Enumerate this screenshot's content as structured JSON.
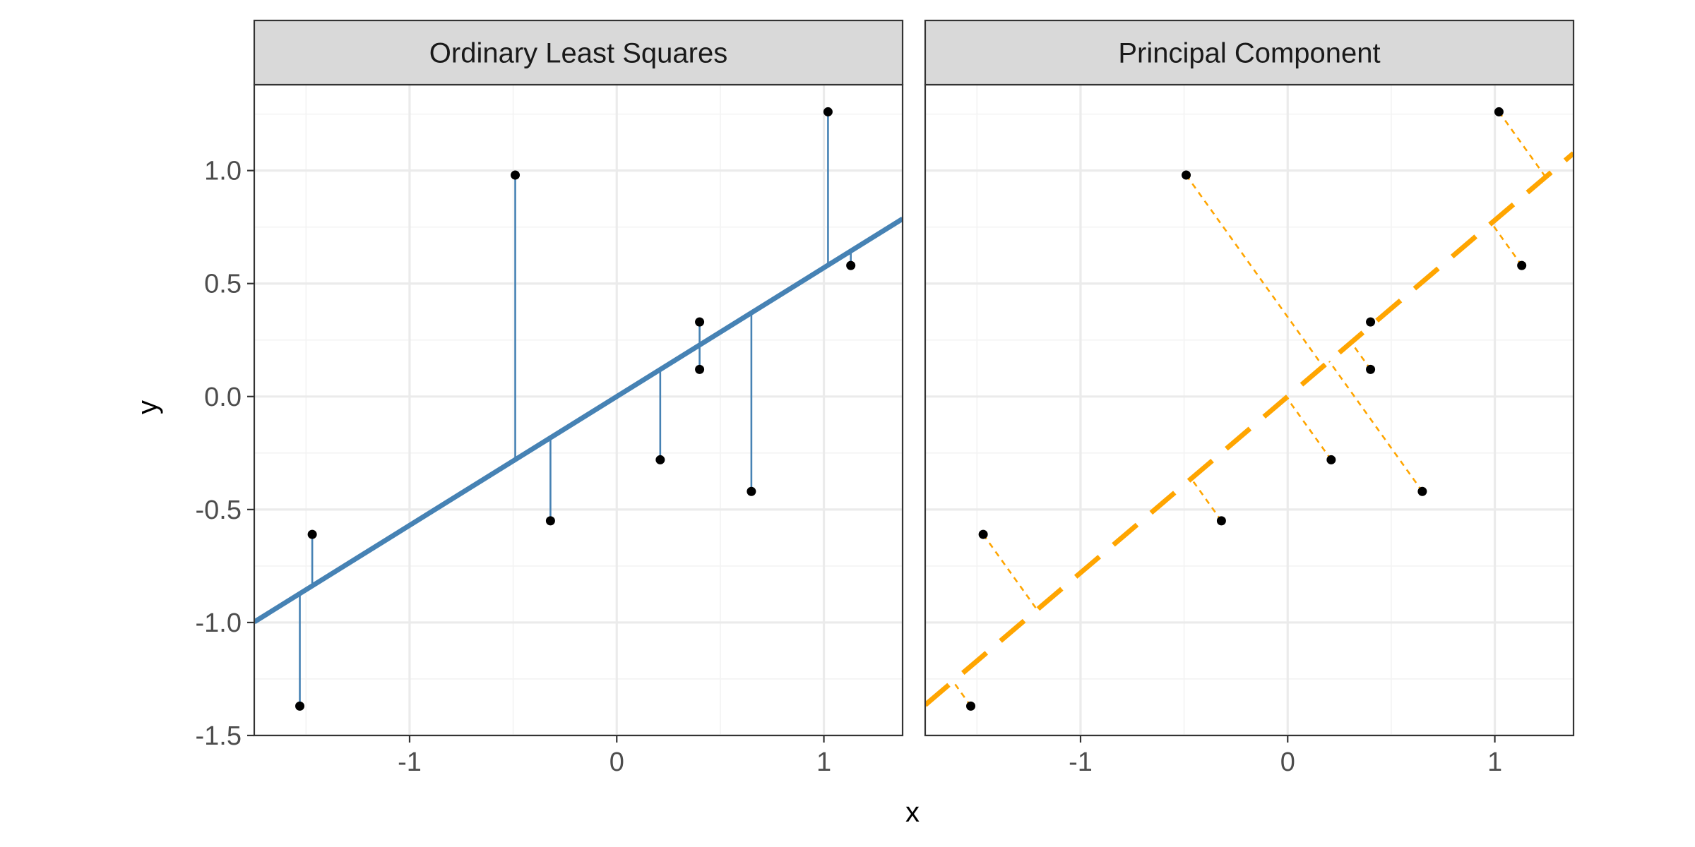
{
  "chart_data": {
    "type": "scatter",
    "xlabel": "x",
    "ylabel": "y",
    "xlim": [
      -1.75,
      1.38
    ],
    "ylim": [
      -1.5,
      1.38
    ],
    "x_ticks": [
      -1,
      0,
      1
    ],
    "x_tick_labels": [
      "-1",
      "0",
      "1"
    ],
    "y_ticks": [
      -1.5,
      -1.0,
      -0.5,
      0.0,
      0.5,
      1.0
    ],
    "y_tick_labels": [
      "-1.5",
      "-1.0",
      "-0.5",
      "0.0",
      "0.5",
      "1.0"
    ],
    "grid": true,
    "points": [
      {
        "x": -1.53,
        "y": -1.37
      },
      {
        "x": -1.47,
        "y": -0.61
      },
      {
        "x": -0.49,
        "y": 0.98
      },
      {
        "x": -0.32,
        "y": -0.55
      },
      {
        "x": 0.21,
        "y": -0.28
      },
      {
        "x": 0.4,
        "y": 0.33
      },
      {
        "x": 0.4,
        "y": 0.12
      },
      {
        "x": 0.65,
        "y": -0.42
      },
      {
        "x": 1.02,
        "y": 1.26
      },
      {
        "x": 1.13,
        "y": 0.58
      }
    ],
    "panels": [
      {
        "title": "Ordinary Least Squares",
        "method": "ols",
        "line": {
          "slope": 0.57,
          "intercept": 0.0,
          "color": "#4682B4",
          "dash": "solid"
        },
        "residual_color": "#4682B4",
        "residual_direction": "vertical"
      },
      {
        "title": "Principal Component",
        "method": "pca",
        "line": {
          "slope": 0.78,
          "intercept": 0.0,
          "color": "#FFA500",
          "dash": "dashed"
        },
        "residual_color": "#FFA500",
        "residual_direction": "perpendicular"
      }
    ],
    "colors": {
      "strip_fill": "#d9d9d9",
      "panel_border": "#333333",
      "grid_major": "#ebebeb",
      "grid_minor": "#f3f3f3",
      "tick_label": "#4d4d4d",
      "point": "#000000"
    }
  }
}
